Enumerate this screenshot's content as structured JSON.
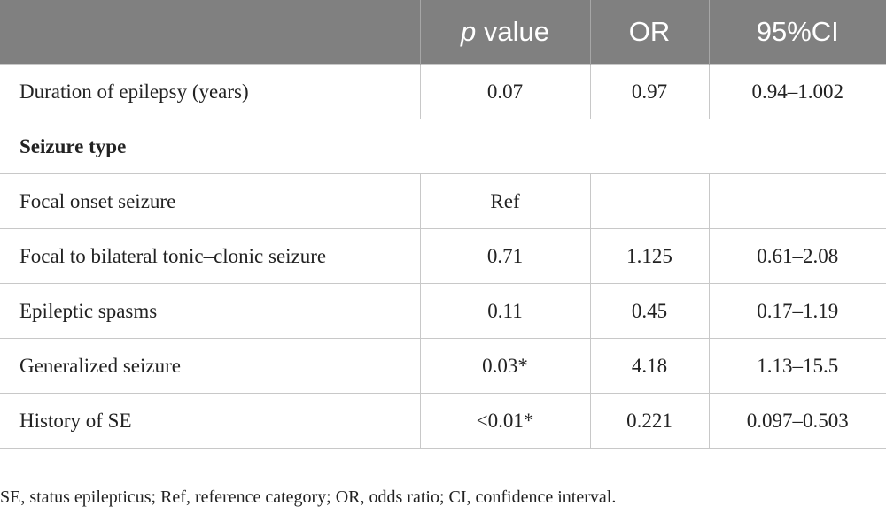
{
  "table": {
    "header": [
      {
        "italic": "p",
        "text": "value"
      },
      "OR",
      "95%CI"
    ],
    "rows": [
      [
        "Duration of epilepsy (years)",
        "0.07",
        "0.97",
        "0.94–1.002"
      ],
      [
        "Seizure type"
      ],
      [
        "Focal onset seizure",
        "Ref",
        null,
        null
      ],
      [
        "Focal to bilateral tonic–clonic seizure",
        "0.71",
        "1.125",
        "0.61–2.08"
      ],
      [
        "Epileptic spasms",
        "0.11",
        "0.45",
        "0.17–1.19"
      ],
      [
        "Generalized seizure",
        "0.03*",
        "4.18",
        "1.13–15.5"
      ],
      [
        "History of SE",
        "<0.01*",
        "0.221",
        "0.097–0.503"
      ]
    ]
  },
  "footnote": "SE, status epilepticus; Ref, reference category; OR, odds ratio; CI, confidence interval."
}
